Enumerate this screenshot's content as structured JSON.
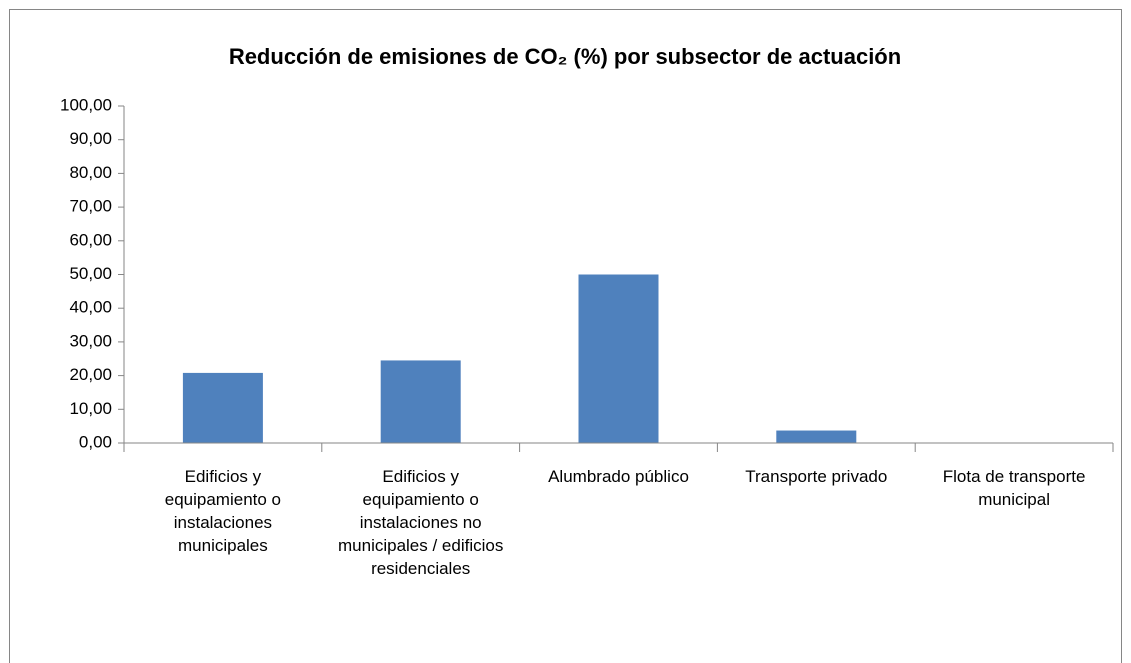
{
  "chart_data": {
    "type": "bar",
    "title": "Reducción de emisiones de CO₂ (%) por subsector de actuación",
    "categories": [
      "Edificios y equipamiento o instalaciones municipales",
      "Edificios y equipamiento o instalaciones no municipales / edificios residenciales",
      "Alumbrado público",
      "Transporte privado",
      "Flota de transporte municipal"
    ],
    "values": [
      20.8,
      24.5,
      50.0,
      3.7,
      0
    ],
    "color": "#4f81bd",
    "ylim": [
      0,
      100
    ],
    "yticks": [
      {
        "value": 0,
        "label": "0,00"
      },
      {
        "value": 10,
        "label": "10,00"
      },
      {
        "value": 20,
        "label": "20,00"
      },
      {
        "value": 30,
        "label": "30,00"
      },
      {
        "value": 40,
        "label": "40,00"
      },
      {
        "value": 50,
        "label": "50,00"
      },
      {
        "value": 60,
        "label": "60,00"
      },
      {
        "value": 70,
        "label": "70,00"
      },
      {
        "value": 80,
        "label": "80,00"
      },
      {
        "value": 90,
        "label": "90,00"
      },
      {
        "value": 100,
        "label": "100,00"
      }
    ],
    "grid": false
  }
}
